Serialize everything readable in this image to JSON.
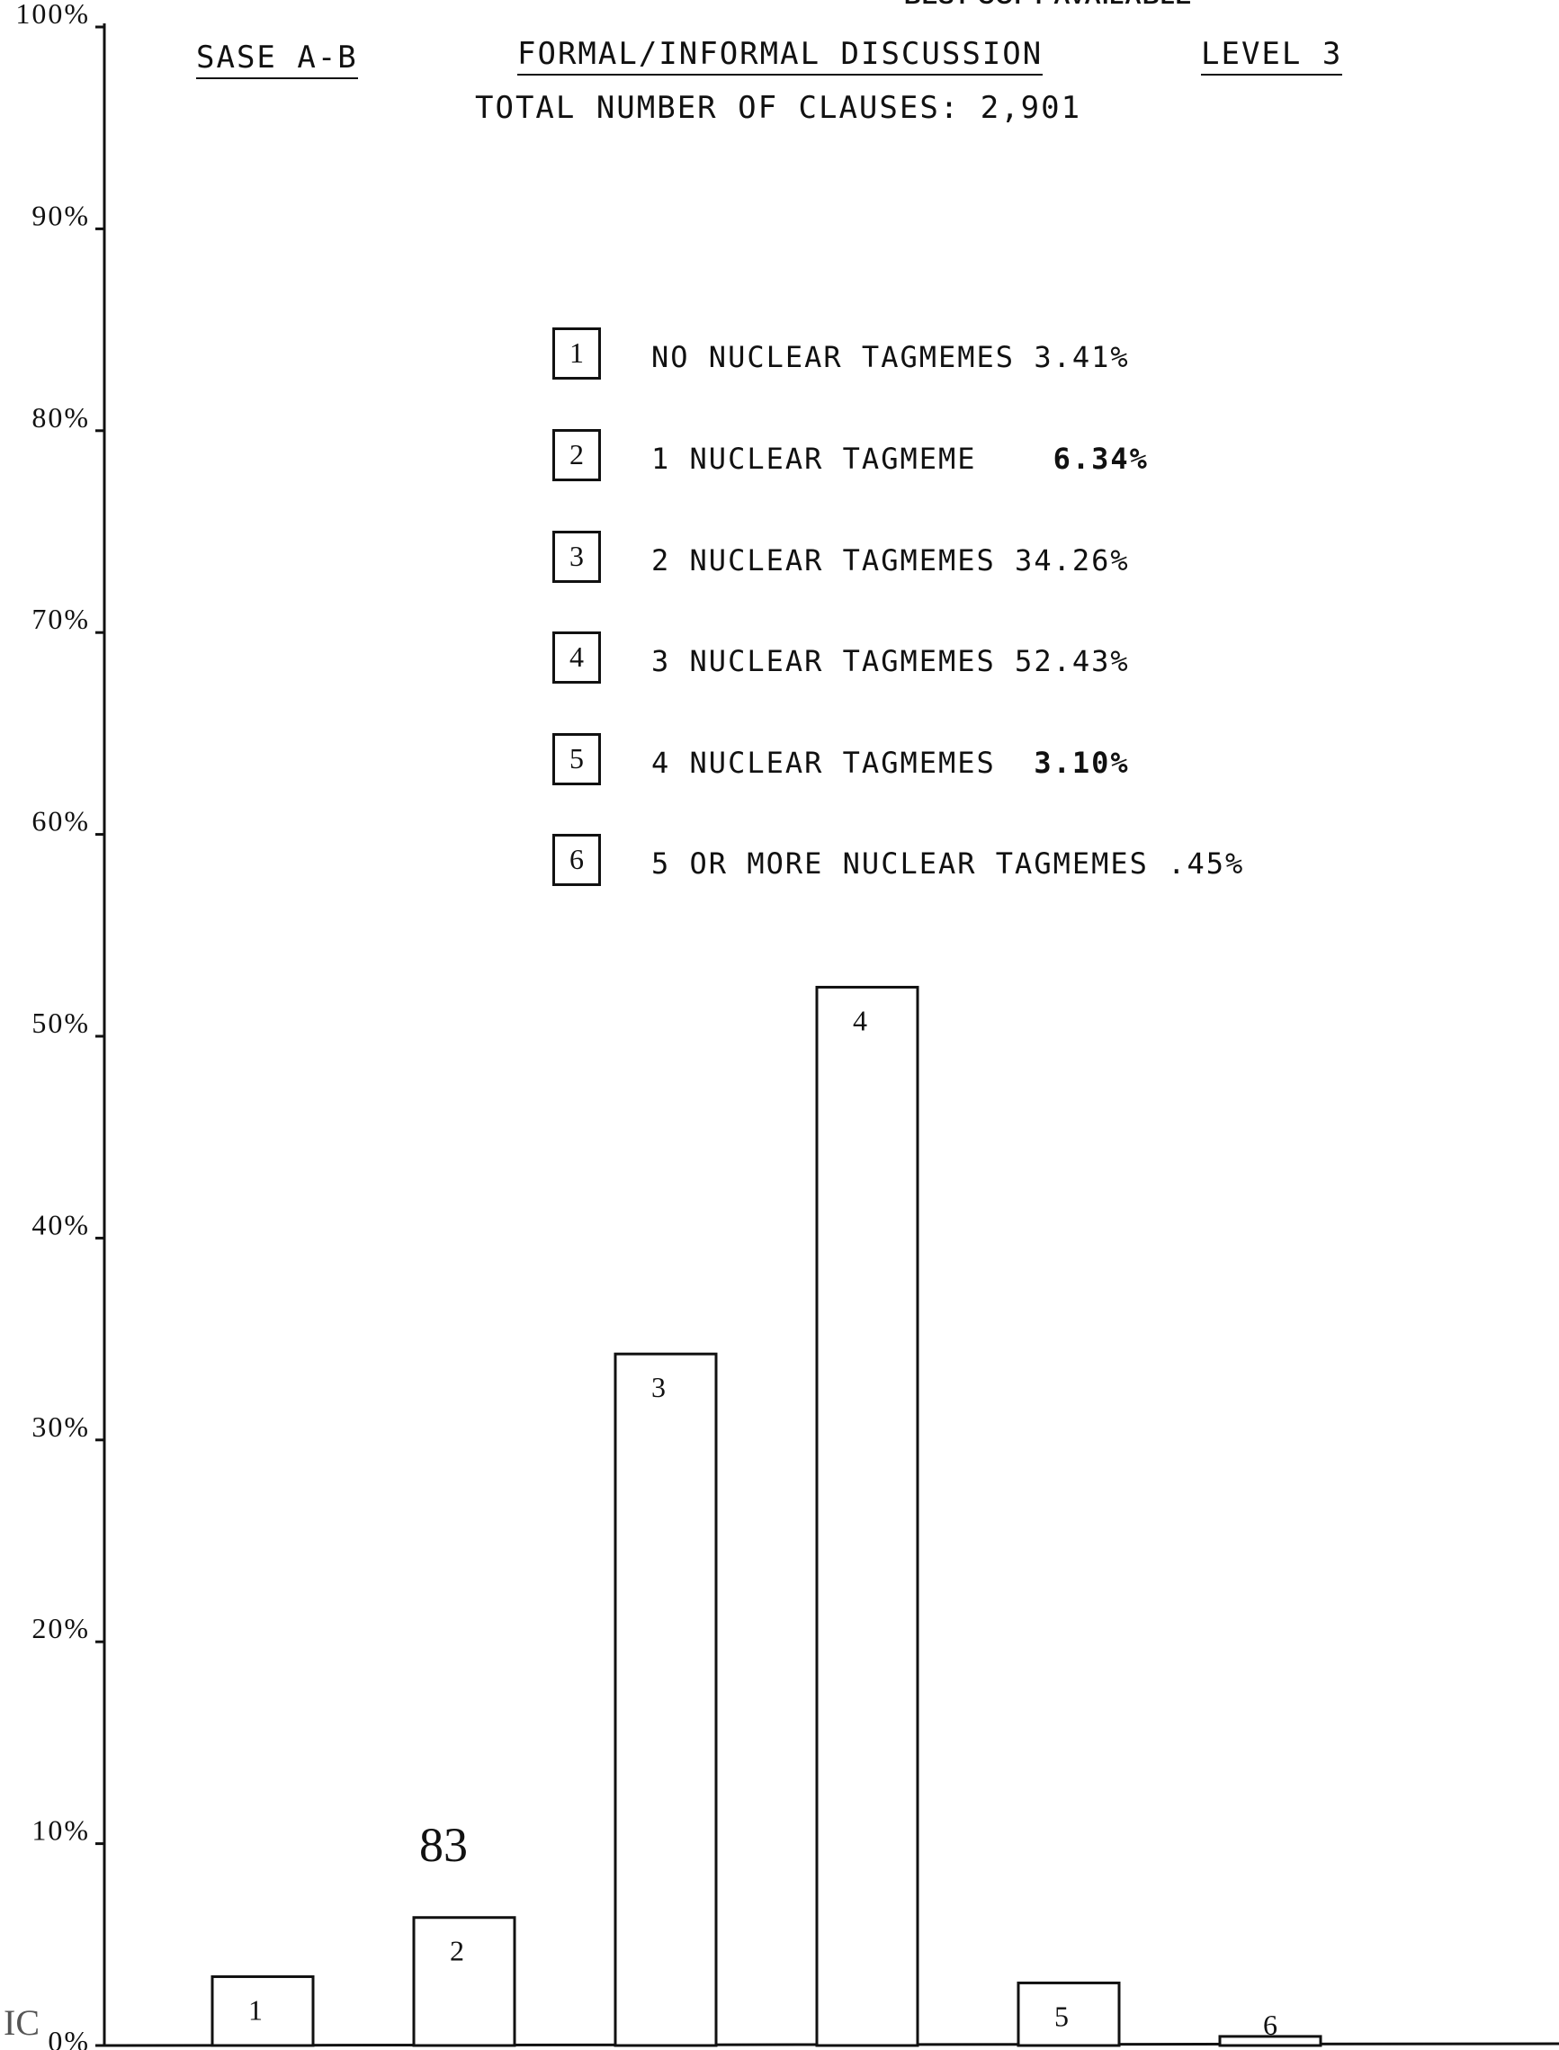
{
  "header": {
    "left": "SASE A-B",
    "center": "FORMAL/INFORMAL DISCUSSION",
    "right": "LEVEL 3",
    "subtitle": "TOTAL NUMBER OF CLAUSES:  2,901",
    "banner": "BEST COPY AVAILABLE"
  },
  "page_number": "83",
  "corner_mark": "IC",
  "legend": [
    {
      "key": "1",
      "label": "NO NUCLEAR TAGMEMES",
      "value": "3.41%",
      "bold": false
    },
    {
      "key": "2",
      "label": "1 NUCLEAR TAGMEME",
      "value": "6.34%",
      "bold": true
    },
    {
      "key": "3",
      "label": "2 NUCLEAR TAGMEMES",
      "value": "34.26%",
      "bold": false
    },
    {
      "key": "4",
      "label": "3 NUCLEAR TAGMEMES",
      "value": "52.43%",
      "bold": false
    },
    {
      "key": "5",
      "label": "4 NUCLEAR TAGMEMES",
      "value": "3.10%",
      "bold": true
    },
    {
      "key": "6",
      "label": "5 OR MORE NUCLEAR TAGMEMES",
      "value": ".45%",
      "bold": false
    }
  ],
  "chart_data": {
    "type": "bar",
    "title": "FORMAL/INFORMAL DISCUSSION",
    "xlabel": "",
    "ylabel": "",
    "ylim": [
      0,
      100
    ],
    "yticks": [
      "0%",
      "10%",
      "20%",
      "30%",
      "40%",
      "50%",
      "60%",
      "70%",
      "80%",
      "90%",
      "100%"
    ],
    "categories": [
      "1",
      "2",
      "3",
      "4",
      "5",
      "6"
    ],
    "values": [
      3.41,
      6.34,
      34.26,
      52.43,
      3.1,
      0.45
    ],
    "grid": false,
    "bar_fill": "#ffffff",
    "bar_stroke": "#111111"
  }
}
